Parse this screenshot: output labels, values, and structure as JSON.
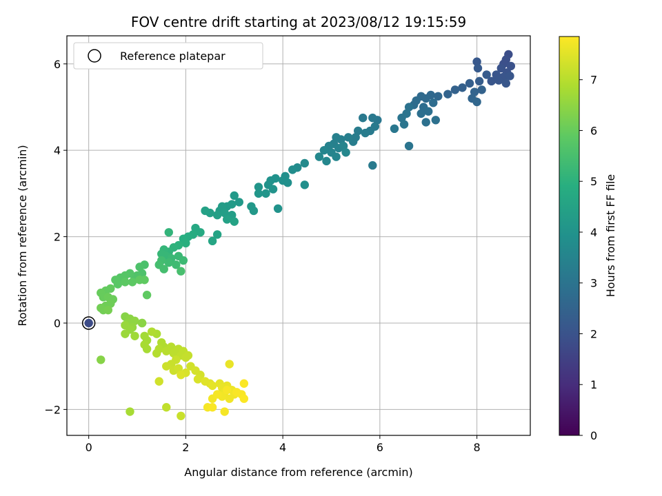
{
  "chart_data": {
    "type": "scatter",
    "title": "FOV centre drift starting at 2023/08/12 19:15:59",
    "xlabel": "Angular distance from reference (arcmin)",
    "ylabel": "Rotation from reference (arcmin)",
    "xlim": [
      -0.45,
      9.1
    ],
    "ylim": [
      -2.6,
      6.65
    ],
    "xticks": [
      0,
      2,
      4,
      6,
      8
    ],
    "yticks": [
      -2,
      0,
      2,
      4,
      6
    ],
    "x_tick_labels": [
      "0",
      "2",
      "4",
      "6",
      "8"
    ],
    "y_tick_labels": [
      "−2",
      "0",
      "2",
      "4",
      "6"
    ],
    "grid": true,
    "colormap": "viridis",
    "legend": {
      "placement": "top-left",
      "entries": [
        "Reference platepar"
      ]
    },
    "colorbar": {
      "label": "Hours from first FF file",
      "range": [
        0,
        7.85
      ],
      "ticks": [
        0,
        1,
        2,
        3,
        4,
        5,
        6,
        7
      ],
      "tick_labels": [
        "0",
        "1",
        "2",
        "3",
        "4",
        "5",
        "6",
        "7"
      ]
    },
    "reference_point": {
      "name": "Reference platepar",
      "x": 0,
      "y": 0,
      "hours": 1.8
    },
    "points": [
      [
        8.65,
        6.22,
        1.85
      ],
      [
        8.6,
        6.1,
        1.9
      ],
      [
        8.55,
        6.0,
        1.92
      ],
      [
        8.7,
        5.95,
        1.95
      ],
      [
        8.5,
        5.9,
        2.0
      ],
      [
        8.62,
        5.8,
        2.0
      ],
      [
        8.4,
        5.75,
        2.05
      ],
      [
        8.55,
        5.7,
        2.05
      ],
      [
        8.68,
        5.72,
        2.08
      ],
      [
        8.3,
        5.6,
        2.1
      ],
      [
        8.45,
        5.62,
        2.1
      ],
      [
        8.6,
        5.55,
        2.12
      ],
      [
        8.0,
        6.05,
        2.15
      ],
      [
        8.02,
        5.9,
        2.2
      ],
      [
        8.2,
        5.75,
        2.25
      ],
      [
        8.05,
        5.6,
        2.3
      ],
      [
        7.85,
        5.55,
        2.35
      ],
      [
        7.7,
        5.45,
        2.4
      ],
      [
        7.55,
        5.4,
        2.45
      ],
      [
        7.4,
        5.3,
        2.5
      ],
      [
        7.95,
        5.35,
        2.5
      ],
      [
        8.1,
        5.4,
        2.45
      ],
      [
        7.9,
        5.2,
        2.55
      ],
      [
        8.0,
        5.12,
        2.6
      ],
      [
        7.2,
        5.25,
        2.6
      ],
      [
        7.05,
        5.28,
        2.65
      ],
      [
        6.95,
        5.2,
        2.7
      ],
      [
        6.85,
        5.25,
        2.7
      ],
      [
        6.75,
        5.15,
        2.75
      ],
      [
        6.7,
        5.05,
        2.75
      ],
      [
        6.9,
        5.0,
        2.8
      ],
      [
        7.1,
        5.1,
        2.8
      ],
      [
        7.0,
        4.9,
        2.85
      ],
      [
        6.85,
        4.85,
        2.85
      ],
      [
        7.15,
        4.7,
        2.9
      ],
      [
        6.95,
        4.65,
        2.9
      ],
      [
        6.6,
        5.0,
        2.95
      ],
      [
        6.55,
        4.85,
        3.0
      ],
      [
        6.45,
        4.75,
        3.0
      ],
      [
        6.5,
        4.6,
        3.05
      ],
      [
        6.3,
        4.5,
        3.1
      ],
      [
        5.95,
        4.7,
        3.1
      ],
      [
        5.85,
        4.75,
        3.15
      ],
      [
        5.65,
        4.75,
        3.15
      ],
      [
        5.9,
        4.55,
        3.2
      ],
      [
        5.8,
        4.45,
        3.2
      ],
      [
        5.7,
        4.4,
        3.25
      ],
      [
        5.55,
        4.45,
        3.25
      ],
      [
        5.5,
        4.3,
        3.3
      ],
      [
        5.45,
        4.2,
        3.3
      ],
      [
        5.35,
        4.3,
        3.35
      ],
      [
        5.2,
        4.25,
        3.35
      ],
      [
        5.1,
        4.3,
        3.4
      ],
      [
        5.05,
        4.15,
        3.4
      ],
      [
        4.95,
        4.1,
        3.45
      ],
      [
        5.15,
        4.05,
        3.45
      ],
      [
        5.25,
        4.1,
        3.5
      ],
      [
        5.0,
        3.95,
        3.5
      ],
      [
        4.85,
        4.0,
        3.55
      ],
      [
        5.1,
        3.85,
        3.55
      ],
      [
        5.3,
        3.95,
        3.6
      ],
      [
        4.75,
        3.85,
        3.65
      ],
      [
        4.9,
        3.75,
        3.6
      ],
      [
        6.6,
        4.1,
        3.0
      ],
      [
        5.85,
        3.65,
        3.2
      ],
      [
        4.45,
        3.7,
        3.7
      ],
      [
        4.3,
        3.6,
        3.75
      ],
      [
        4.2,
        3.55,
        3.8
      ],
      [
        4.05,
        3.4,
        3.85
      ],
      [
        4.0,
        3.3,
        3.9
      ],
      [
        4.1,
        3.25,
        3.9
      ],
      [
        4.45,
        3.2,
        3.85
      ],
      [
        3.85,
        3.35,
        3.95
      ],
      [
        3.75,
        3.3,
        3.95
      ],
      [
        3.7,
        3.2,
        4.0
      ],
      [
        3.8,
        3.1,
        4.0
      ],
      [
        3.65,
        3.0,
        4.05
      ],
      [
        3.5,
        3.15,
        4.05
      ],
      [
        3.5,
        3.0,
        4.1
      ],
      [
        3.9,
        2.65,
        4.0
      ],
      [
        3.35,
        2.7,
        4.15
      ],
      [
        3.4,
        2.6,
        4.15
      ],
      [
        3.0,
        2.95,
        4.2
      ],
      [
        3.1,
        2.8,
        4.2
      ],
      [
        2.95,
        2.75,
        4.25
      ],
      [
        2.85,
        2.7,
        4.25
      ],
      [
        2.75,
        2.7,
        4.3
      ],
      [
        2.7,
        2.6,
        4.3
      ],
      [
        2.8,
        2.55,
        4.35
      ],
      [
        2.95,
        2.5,
        4.35
      ],
      [
        2.65,
        2.5,
        4.4
      ],
      [
        2.5,
        2.55,
        4.4
      ],
      [
        2.4,
        2.6,
        4.45
      ],
      [
        2.85,
        2.4,
        4.45
      ],
      [
        3.0,
        2.35,
        4.5
      ],
      [
        2.65,
        2.05,
        4.55
      ],
      [
        2.55,
        1.9,
        4.6
      ],
      [
        2.2,
        2.2,
        4.7
      ],
      [
        2.3,
        2.1,
        4.75
      ],
      [
        2.15,
        2.05,
        4.8
      ],
      [
        2.05,
        2.0,
        4.85
      ],
      [
        1.95,
        1.95,
        4.9
      ],
      [
        2.0,
        1.85,
        4.95
      ],
      [
        1.85,
        1.8,
        5.0
      ],
      [
        1.75,
        1.75,
        5.05
      ],
      [
        1.65,
        1.65,
        5.1
      ],
      [
        1.55,
        1.7,
        5.15
      ],
      [
        1.5,
        1.6,
        5.2
      ],
      [
        1.6,
        1.55,
        5.2
      ],
      [
        1.7,
        1.5,
        5.25
      ],
      [
        1.85,
        1.55,
        5.25
      ],
      [
        1.95,
        1.45,
        5.3
      ],
      [
        1.8,
        1.35,
        5.35
      ],
      [
        1.65,
        1.4,
        5.35
      ],
      [
        1.5,
        1.45,
        5.4
      ],
      [
        1.45,
        1.35,
        5.45
      ],
      [
        1.55,
        1.25,
        5.45
      ],
      [
        1.9,
        1.2,
        5.5
      ],
      [
        1.65,
        2.1,
        5.1
      ],
      [
        1.15,
        1.35,
        5.55
      ],
      [
        1.05,
        1.3,
        5.6
      ],
      [
        1.1,
        1.15,
        5.6
      ],
      [
        1.0,
        1.1,
        5.65
      ],
      [
        0.95,
        1.05,
        5.65
      ],
      [
        0.85,
        1.15,
        5.7
      ],
      [
        0.75,
        1.1,
        5.75
      ],
      [
        0.65,
        1.05,
        5.75
      ],
      [
        0.55,
        1.0,
        5.8
      ],
      [
        0.6,
        0.9,
        5.8
      ],
      [
        0.75,
        0.95,
        5.85
      ],
      [
        0.9,
        0.95,
        5.85
      ],
      [
        1.05,
        1.0,
        5.9
      ],
      [
        1.15,
        1.0,
        5.9
      ],
      [
        0.45,
        0.8,
        5.95
      ],
      [
        0.35,
        0.75,
        5.95
      ],
      [
        0.25,
        0.7,
        6.0
      ],
      [
        0.3,
        0.6,
        6.0
      ],
      [
        0.4,
        0.6,
        6.05
      ],
      [
        0.5,
        0.55,
        6.05
      ],
      [
        0.45,
        0.45,
        6.1
      ],
      [
        0.35,
        0.4,
        6.1
      ],
      [
        0.25,
        0.35,
        6.15
      ],
      [
        0.3,
        0.3,
        6.15
      ],
      [
        0.4,
        0.3,
        6.2
      ],
      [
        1.2,
        0.65,
        5.9
      ],
      [
        0.75,
        0.15,
        6.4
      ],
      [
        0.85,
        0.1,
        6.45
      ],
      [
        0.8,
        0.0,
        6.5
      ],
      [
        0.95,
        0.05,
        6.5
      ],
      [
        1.1,
        0.0,
        6.55
      ],
      [
        0.9,
        -0.1,
        6.55
      ],
      [
        0.75,
        -0.05,
        6.6
      ],
      [
        0.85,
        -0.15,
        6.6
      ],
      [
        0.75,
        -0.25,
        6.65
      ],
      [
        0.95,
        -0.3,
        6.7
      ],
      [
        1.15,
        -0.3,
        6.75
      ],
      [
        1.2,
        -0.4,
        6.75
      ],
      [
        1.15,
        -0.5,
        6.8
      ],
      [
        1.2,
        -0.6,
        6.8
      ],
      [
        1.4,
        -0.25,
        6.85
      ],
      [
        1.5,
        -0.45,
        6.9
      ],
      [
        1.55,
        -0.55,
        6.9
      ],
      [
        1.45,
        -0.6,
        6.95
      ],
      [
        1.4,
        -0.7,
        6.95
      ],
      [
        1.6,
        -0.65,
        7.0
      ],
      [
        1.7,
        -0.55,
        7.0
      ],
      [
        1.75,
        -0.7,
        7.05
      ],
      [
        1.85,
        -0.6,
        7.05
      ],
      [
        1.9,
        -0.75,
        7.1
      ],
      [
        1.95,
        -0.65,
        7.1
      ],
      [
        2.0,
        -0.8,
        7.15
      ],
      [
        2.05,
        -0.75,
        7.15
      ],
      [
        1.8,
        -0.85,
        7.2
      ],
      [
        1.7,
        -0.95,
        7.2
      ],
      [
        1.6,
        -1.0,
        7.25
      ],
      [
        1.75,
        -1.1,
        7.25
      ],
      [
        1.85,
        -1.05,
        7.3
      ],
      [
        2.1,
        -1.0,
        7.3
      ],
      [
        2.2,
        -1.1,
        7.35
      ],
      [
        2.3,
        -1.2,
        7.35
      ],
      [
        2.25,
        -1.3,
        7.4
      ],
      [
        2.0,
        -1.15,
        7.4
      ],
      [
        1.9,
        -1.2,
        7.45
      ],
      [
        1.45,
        -1.35,
        7.3
      ],
      [
        2.4,
        -1.35,
        7.5
      ],
      [
        2.5,
        -1.4,
        7.5
      ],
      [
        2.55,
        -1.45,
        7.55
      ],
      [
        2.7,
        -1.4,
        7.55
      ],
      [
        2.75,
        -1.5,
        7.6
      ],
      [
        2.85,
        -1.45,
        7.6
      ],
      [
        2.8,
        -1.6,
        7.65
      ],
      [
        2.95,
        -1.55,
        7.65
      ],
      [
        3.0,
        -1.65,
        7.7
      ],
      [
        2.9,
        -1.75,
        7.7
      ],
      [
        2.75,
        -1.7,
        7.72
      ],
      [
        2.55,
        -1.75,
        7.72
      ],
      [
        2.65,
        -1.65,
        7.75
      ],
      [
        2.45,
        -1.95,
        7.75
      ],
      [
        2.55,
        -1.95,
        7.8
      ],
      [
        2.85,
        -1.55,
        7.78
      ],
      [
        3.15,
        -1.65,
        7.8
      ],
      [
        3.2,
        -1.75,
        7.82
      ],
      [
        3.2,
        -1.4,
        7.82
      ],
      [
        3.05,
        -1.6,
        7.8
      ],
      [
        2.9,
        -0.95,
        7.6
      ],
      [
        2.8,
        -2.05,
        7.75
      ],
      [
        0.85,
        -2.05,
        6.8
      ],
      [
        1.6,
        -1.95,
        7.1
      ],
      [
        1.9,
        -2.15,
        7.2
      ],
      [
        0.25,
        -0.85,
        6.4
      ],
      [
        1.1,
        0.0,
        6.45
      ],
      [
        1.3,
        -0.2,
        6.9
      ]
    ]
  }
}
